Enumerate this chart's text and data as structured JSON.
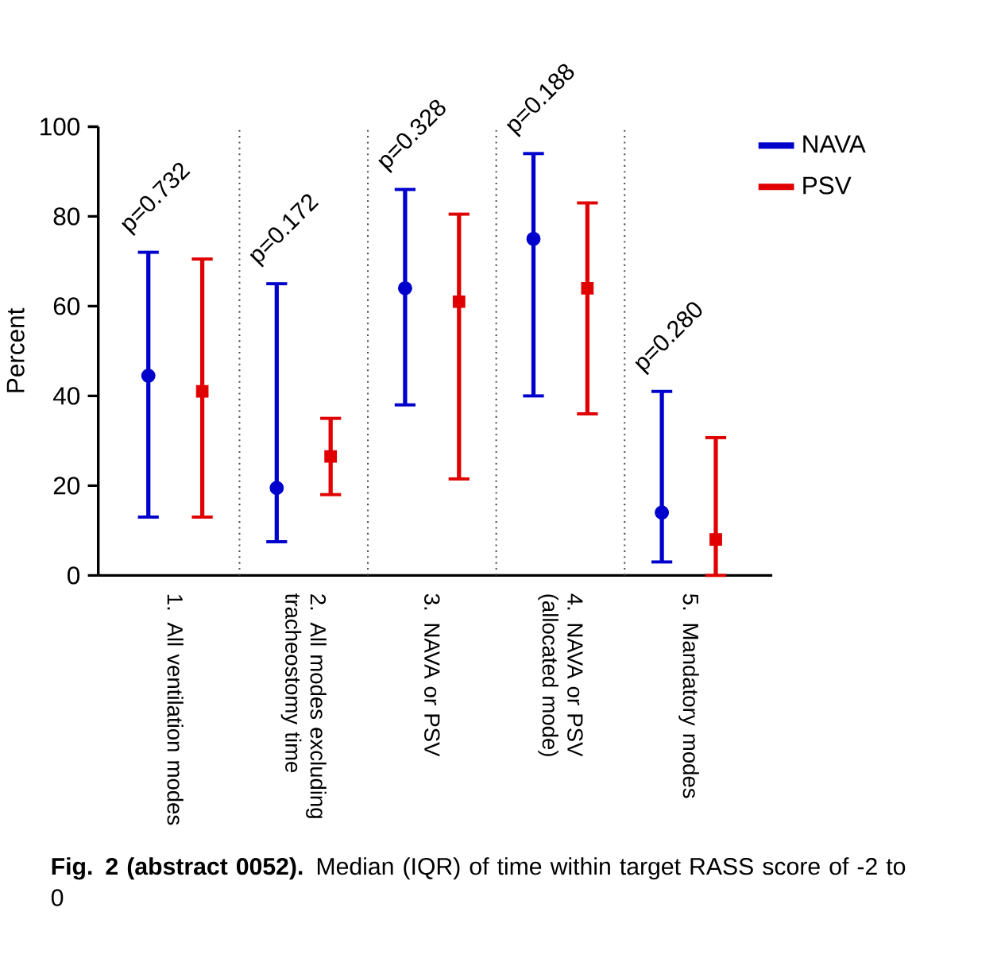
{
  "chart_data": {
    "type": "scatter",
    "ylabel": "Percent",
    "categories": [
      "1. All ventilation modes",
      "2. All modes excluding tracheostomy time",
      "3. NAVA or PSV",
      "4. NAVA or PSV (allocated mode)",
      "5. Mandatory modes"
    ],
    "series": [
      {
        "name": "NAVA",
        "color": "#0000cc",
        "marker": "circle",
        "values": [
          44.5,
          19.5,
          64,
          75,
          14
        ],
        "errors": [
          [
            13,
            72
          ],
          [
            7.5,
            65
          ],
          [
            38,
            86
          ],
          [
            40,
            94
          ],
          [
            3,
            41
          ]
        ]
      },
      {
        "name": "PSV",
        "color": "#e00000",
        "marker": "square",
        "values": [
          41,
          26.5,
          61,
          64,
          8
        ],
        "errors": [
          [
            13,
            70.5
          ],
          [
            18,
            35
          ],
          [
            21.5,
            80.5
          ],
          [
            36,
            83
          ],
          [
            0,
            30.7
          ]
        ]
      }
    ],
    "ylim": [
      0,
      100
    ],
    "yticks": [
      0,
      20,
      40,
      60,
      80,
      100
    ],
    "legend": "top right",
    "annotations": [
      "p=0.732",
      "p=0.172",
      "p=0.328",
      "p=0.188",
      "p=0.280",
      "**Fig. 2 (abstract 0052).** Median (IQR) of time within target RASS score of -2 to 0"
    ]
  }
}
